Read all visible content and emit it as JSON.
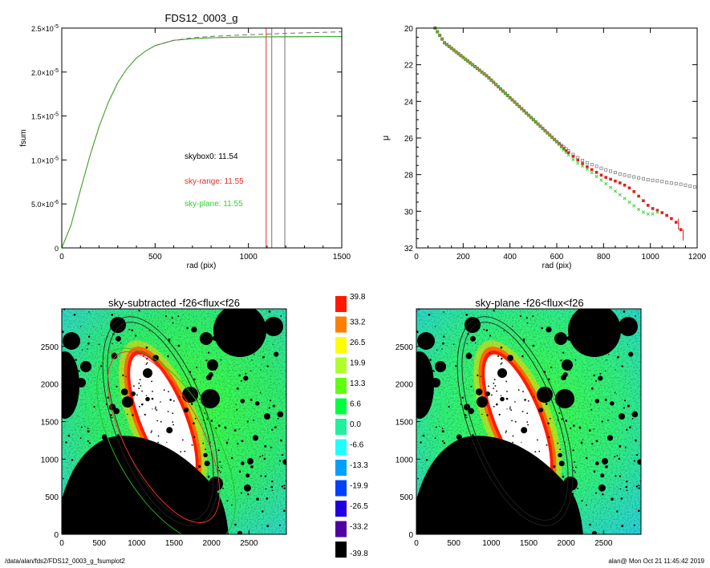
{
  "chart_data": [
    {
      "type": "line",
      "title": "FDS12_0003_g",
      "xlabel": "rad (pix)",
      "ylabel": "fsum",
      "xlim": [
        0,
        1500
      ],
      "ylim": [
        0,
        2.5e-05
      ],
      "xticks": [
        "0",
        "500",
        "1000",
        "1500"
      ],
      "yticks": [
        {
          "value": 0,
          "label": "0"
        },
        {
          "value": 5e-06,
          "label": "5.0×10-6"
        },
        {
          "value": 1e-05,
          "label": "1.0×10-5"
        },
        {
          "value": 1.5e-05,
          "label": "1.5×10-5"
        },
        {
          "value": 2e-05,
          "label": "2.0×10-5"
        },
        {
          "value": 2.5e-05,
          "label": "2.5×10-5"
        }
      ],
      "series": [
        {
          "color": "#e83030",
          "style": "solid",
          "x": [
            0,
            50,
            100,
            150,
            200,
            250,
            300,
            350,
            400,
            450,
            500,
            600,
            700,
            800,
            900,
            1000,
            1100,
            1200,
            1300,
            1400,
            1500
          ],
          "y": [
            0,
            2.6e-06,
            6.6e-06,
            1.04e-05,
            1.38e-05,
            1.66e-05,
            1.88e-05,
            2.04e-05,
            2.16e-05,
            2.24e-05,
            2.3e-05,
            2.36e-05,
            2.38e-05,
            2.39e-05,
            2.395e-05,
            2.398e-05,
            2.4e-05,
            2.401e-05,
            2.402e-05,
            2.403e-05,
            2.403e-05
          ]
        },
        {
          "color": "#2fb52f",
          "style": "solid",
          "x": [
            0,
            50,
            100,
            150,
            200,
            250,
            300,
            350,
            400,
            450,
            500,
            600,
            700,
            800,
            900,
            1000,
            1100,
            1200,
            1300,
            1400,
            1500
          ],
          "y": [
            0,
            2.6e-06,
            6.6e-06,
            1.04e-05,
            1.38e-05,
            1.66e-05,
            1.88e-05,
            2.04e-05,
            2.16e-05,
            2.24e-05,
            2.3e-05,
            2.36e-05,
            2.38e-05,
            2.39e-05,
            2.396e-05,
            2.399e-05,
            2.401e-05,
            2.402e-05,
            2.403e-05,
            2.404e-05,
            2.404e-05
          ]
        },
        {
          "color": "#707070",
          "style": "dashed",
          "x": [
            500,
            600,
            700,
            800,
            900,
            1000,
            1100,
            1200,
            1300,
            1400,
            1500
          ],
          "y": [
            2.3e-05,
            2.36e-05,
            2.39e-05,
            2.405e-05,
            2.415e-05,
            2.425e-05,
            2.432e-05,
            2.44e-05,
            2.446e-05,
            2.452e-05,
            2.458e-05
          ]
        }
      ],
      "vlines": [
        {
          "x": 1095,
          "color": "#e83030"
        },
        {
          "x": 1125,
          "color": "#707070"
        },
        {
          "x": 1195,
          "color": "#707070"
        }
      ],
      "annotations": [
        {
          "text": "skybox0: 11.54",
          "color": "#000000"
        },
        {
          "text": "sky-range: 11.55",
          "color": "#e03030"
        },
        {
          "text": "sky-plane: 11.55",
          "color": "#30d030"
        }
      ]
    },
    {
      "type": "scatter",
      "xlabel": "rad (pix)",
      "ylabel": "μ",
      "xlim": [
        0,
        1200
      ],
      "ylim": [
        32,
        20
      ],
      "xticks": [
        "0",
        "200",
        "400",
        "600",
        "800",
        "1000",
        "1200"
      ],
      "yticks": [
        "20",
        "22",
        "24",
        "26",
        "28",
        "30",
        "32"
      ],
      "series": [
        {
          "color": "#808080",
          "marker": "square-open",
          "x": [
            80,
            120,
            160,
            200,
            250,
            300,
            350,
            400,
            450,
            500,
            550,
            600,
            640,
            680,
            720,
            760,
            800,
            840,
            880,
            920,
            960,
            1000,
            1040,
            1080,
            1120,
            1160,
            1200
          ],
          "y": [
            20.0,
            20.8,
            21.2,
            21.6,
            22.1,
            22.6,
            23.2,
            23.8,
            24.4,
            25.0,
            25.6,
            26.2,
            26.6,
            27.0,
            27.3,
            27.5,
            27.7,
            27.85,
            28.0,
            28.1,
            28.2,
            28.3,
            28.35,
            28.45,
            28.5,
            28.6,
            28.7
          ]
        },
        {
          "color": "#e02020",
          "marker": "square",
          "x": [
            80,
            120,
            160,
            200,
            250,
            300,
            350,
            400,
            450,
            500,
            550,
            600,
            640,
            680,
            720,
            760,
            800,
            840,
            880,
            920,
            960,
            1000,
            1040,
            1080,
            1120,
            1140
          ],
          "y": [
            20.0,
            20.8,
            21.2,
            21.6,
            22.1,
            22.6,
            23.2,
            23.8,
            24.4,
            25.0,
            25.6,
            26.2,
            26.7,
            27.1,
            27.5,
            27.8,
            28.1,
            28.3,
            28.5,
            28.8,
            29.3,
            29.8,
            30.0,
            30.3,
            30.7,
            31.3
          ]
        },
        {
          "color": "#40d040",
          "marker": "x",
          "x": [
            80,
            120,
            160,
            200,
            250,
            300,
            350,
            400,
            450,
            500,
            550,
            600,
            640,
            680,
            720,
            760,
            800,
            840,
            880,
            920,
            960,
            1000,
            1040
          ],
          "y": [
            20.0,
            20.8,
            21.2,
            21.6,
            22.1,
            22.6,
            23.2,
            23.8,
            24.4,
            25.0,
            25.6,
            26.2,
            26.8,
            27.3,
            27.6,
            28.0,
            28.4,
            28.8,
            29.2,
            29.6,
            30.0,
            30.2,
            30.0
          ]
        }
      ]
    },
    {
      "type": "heatmap",
      "title": "sky-subtracted -f26<flux<f26",
      "xlim": [
        0,
        3000
      ],
      "ylim": [
        0,
        3000
      ],
      "xticks": [
        "0",
        "500",
        "1000",
        "1500",
        "2000",
        "2500"
      ],
      "yticks": [
        "0",
        "500",
        "1000",
        "1500",
        "2000",
        "2500"
      ]
    },
    {
      "type": "heatmap",
      "title": "sky-plane -f26<flux<f26",
      "xlim": [
        0,
        3000
      ],
      "ylim": [
        0,
        3000
      ],
      "xticks": [
        "0",
        "500",
        "1000",
        "1500",
        "2000",
        "2500"
      ],
      "yticks": [
        "0",
        "500",
        "1000",
        "1500",
        "2000",
        "2500"
      ]
    }
  ],
  "colorbar": {
    "labels": [
      "39.8",
      "33.2",
      "26.5",
      "19.9",
      "13.3",
      "6.6",
      "0.0",
      "-6.6",
      "-13.3",
      "-19.9",
      "-26.5",
      "-33.2",
      "-39.8"
    ],
    "colors": [
      "#ff1a00",
      "#ff8000",
      "#ffff00",
      "#b0ff2a",
      "#60ff10",
      "#00ff40",
      "#20f0a0",
      "#20ffff",
      "#00a0ff",
      "#0040ff",
      "#2000e0",
      "#5000a0",
      "#000000"
    ]
  },
  "footer": {
    "path": "/data/alan/fds2/FDS12_0003_g_fsumplot2",
    "stamp": "alan@  Mon Oct 21 11:45:42 2019"
  }
}
